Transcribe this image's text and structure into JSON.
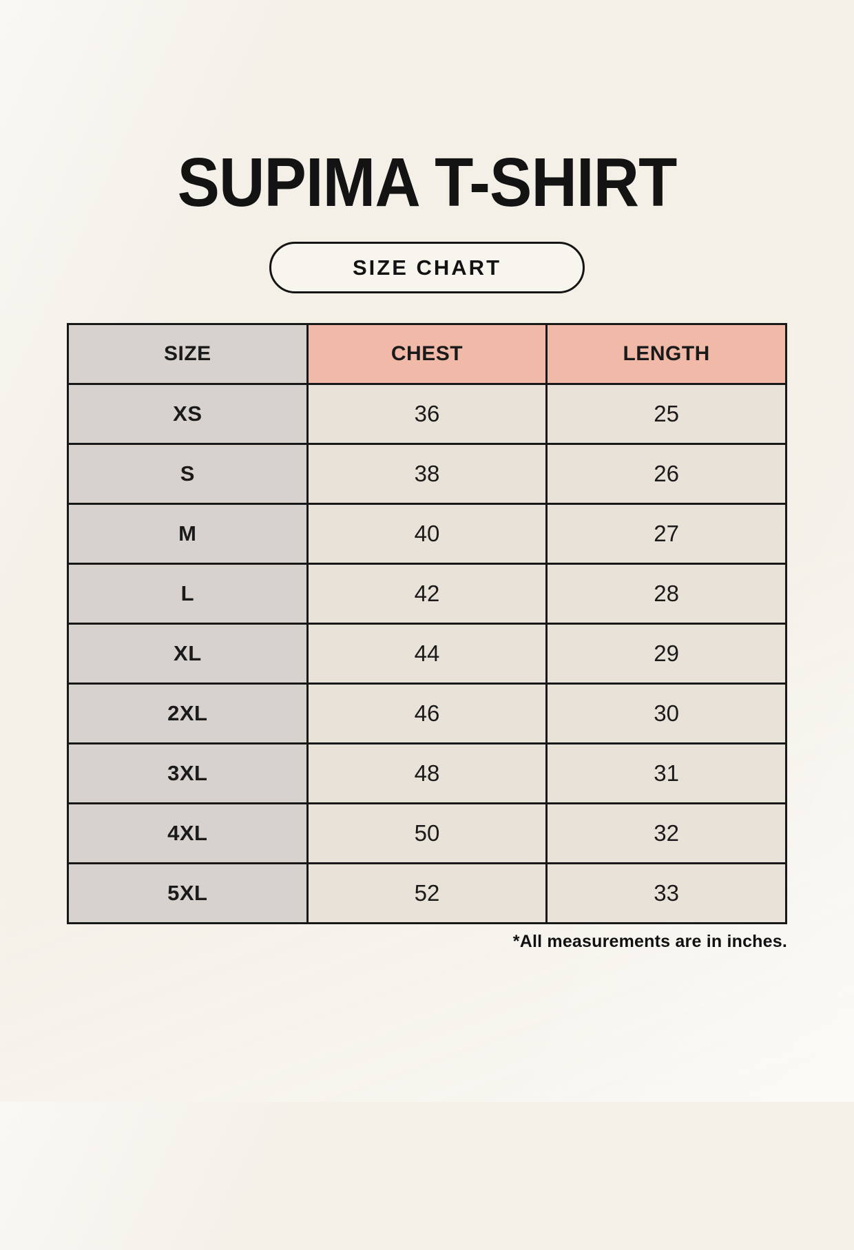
{
  "page": {
    "title": "SUPIMA T-SHIRT",
    "badge_label": "SIZE CHART",
    "footnote": "*All measurements are in inches."
  },
  "colors": {
    "background": "#f7f4ed",
    "header_accent_pink": "#f0b9a8",
    "size_column_gray": "#d8d2cf",
    "data_cell_beige": "#e9e2d8",
    "border_black": "#181818",
    "text": "#1a1a1a"
  },
  "chart_data": {
    "type": "table",
    "title": "SUPIMA T-SHIRT",
    "subtitle": "SIZE CHART",
    "columns": [
      "SIZE",
      "CHEST",
      "LENGTH"
    ],
    "rows": [
      [
        "XS",
        "36",
        "25"
      ],
      [
        "S",
        "38",
        "26"
      ],
      [
        "M",
        "40",
        "27"
      ],
      [
        "L",
        "42",
        "28"
      ],
      [
        "XL",
        "44",
        "29"
      ],
      [
        "2XL",
        "46",
        "30"
      ],
      [
        "3XL",
        "48",
        "31"
      ],
      [
        "4XL",
        "50",
        "32"
      ],
      [
        "5XL",
        "52",
        "33"
      ]
    ],
    "units_note": "*All measurements are in inches.",
    "layout": {
      "header_fill": [
        "gray",
        "pink",
        "pink"
      ],
      "grid": "on"
    }
  }
}
